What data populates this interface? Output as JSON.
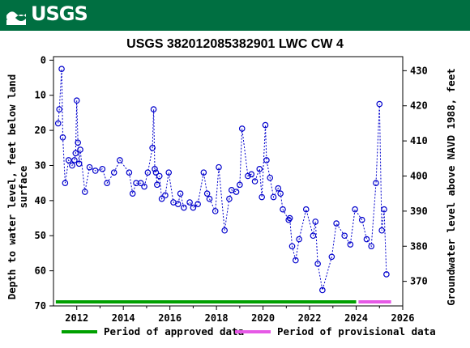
{
  "header": {
    "agency": "USGS",
    "logo_icon": "usgs-wave-logo-icon"
  },
  "chart_data": {
    "type": "line",
    "title": "USGS 382012085382901 LWC CW 4",
    "ylabel_left_line1": "Depth to water level, feet below land",
    "ylabel_left_line2": "surface",
    "ylabel_right": "Groundwater level above NAVD 1988, feet",
    "x_ticks": [
      "2012",
      "2014",
      "2016",
      "2018",
      "2020",
      "2022",
      "2024",
      "2026"
    ],
    "y_ticks_left": [
      "0",
      "10",
      "20",
      "30",
      "40",
      "50",
      "60",
      "70"
    ],
    "y_ticks_right": [
      "430",
      "420",
      "410",
      "400",
      "390",
      "380",
      "370"
    ],
    "xlim": [
      2011.0,
      2026.0
    ],
    "ylim_left": [
      70.0,
      -1.0
    ],
    "ylim_right_map": {
      "offset": 433.0
    },
    "series_color": "#0000cc",
    "x": [
      2011.2,
      2011.25,
      2011.35,
      2011.4,
      2011.5,
      2011.65,
      2011.8,
      2011.9,
      2011.95,
      2012.0,
      2012.05,
      2012.1,
      2012.15,
      2012.35,
      2012.55,
      2012.8,
      2013.1,
      2013.3,
      2013.6,
      2013.85,
      2014.25,
      2014.4,
      2014.55,
      2014.75,
      2014.9,
      2015.05,
      2015.25,
      2015.3,
      2015.35,
      2015.4,
      2015.45,
      2015.55,
      2015.65,
      2015.8,
      2015.95,
      2016.15,
      2016.35,
      2016.45,
      2016.6,
      2016.85,
      2017.0,
      2017.2,
      2017.45,
      2017.6,
      2017.7,
      2017.95,
      2018.1,
      2018.35,
      2018.55,
      2018.65,
      2018.85,
      2019.0,
      2019.1,
      2019.35,
      2019.5,
      2019.65,
      2019.85,
      2019.95,
      2020.1,
      2020.15,
      2020.3,
      2020.45,
      2020.65,
      2020.75,
      2020.85,
      2021.1,
      2021.15,
      2021.25,
      2021.4,
      2021.55,
      2021.85,
      2022.15,
      2022.25,
      2022.35,
      2022.55,
      2022.95,
      2023.15,
      2023.5,
      2023.75,
      2023.95,
      2024.25,
      2024.45,
      2024.65,
      2024.85,
      2025.0,
      2025.1,
      2025.2,
      2025.3
    ],
    "y": [
      18.0,
      14.0,
      2.5,
      22.0,
      35.0,
      28.5,
      30.0,
      28.5,
      26.5,
      11.5,
      23.5,
      29.5,
      25.5,
      37.5,
      30.5,
      31.5,
      31.0,
      35.0,
      32.0,
      28.5,
      32.0,
      38.0,
      35.0,
      35.0,
      36.0,
      32.0,
      25.0,
      14.0,
      31.0,
      32.0,
      35.5,
      33.0,
      39.5,
      38.5,
      32.0,
      40.5,
      41.0,
      38.0,
      42.0,
      40.5,
      42.0,
      41.0,
      32.0,
      38.0,
      39.5,
      43.0,
      30.5,
      48.5,
      39.5,
      37.0,
      37.5,
      35.5,
      19.5,
      33.0,
      32.5,
      34.5,
      31.0,
      39.0,
      18.5,
      28.5,
      33.5,
      39.0,
      36.5,
      38.0,
      42.5,
      45.5,
      45.0,
      53.0,
      57.0,
      51.0,
      42.5,
      50.0,
      46.0,
      58.0,
      65.5,
      56.0,
      46.5,
      50.0,
      52.5,
      42.5,
      45.5,
      51.0,
      53.0,
      35.0,
      12.5,
      48.5,
      42.5,
      61.0
    ],
    "periods": [
      {
        "name": "Period of approved data",
        "start": 2011.1,
        "end": 2024.0,
        "color": "#00a000"
      },
      {
        "name": "Period of provisional data",
        "start": 2024.1,
        "end": 2025.5,
        "color": "#e659e6"
      }
    ],
    "legend_placement": "bottom",
    "grid": false
  }
}
